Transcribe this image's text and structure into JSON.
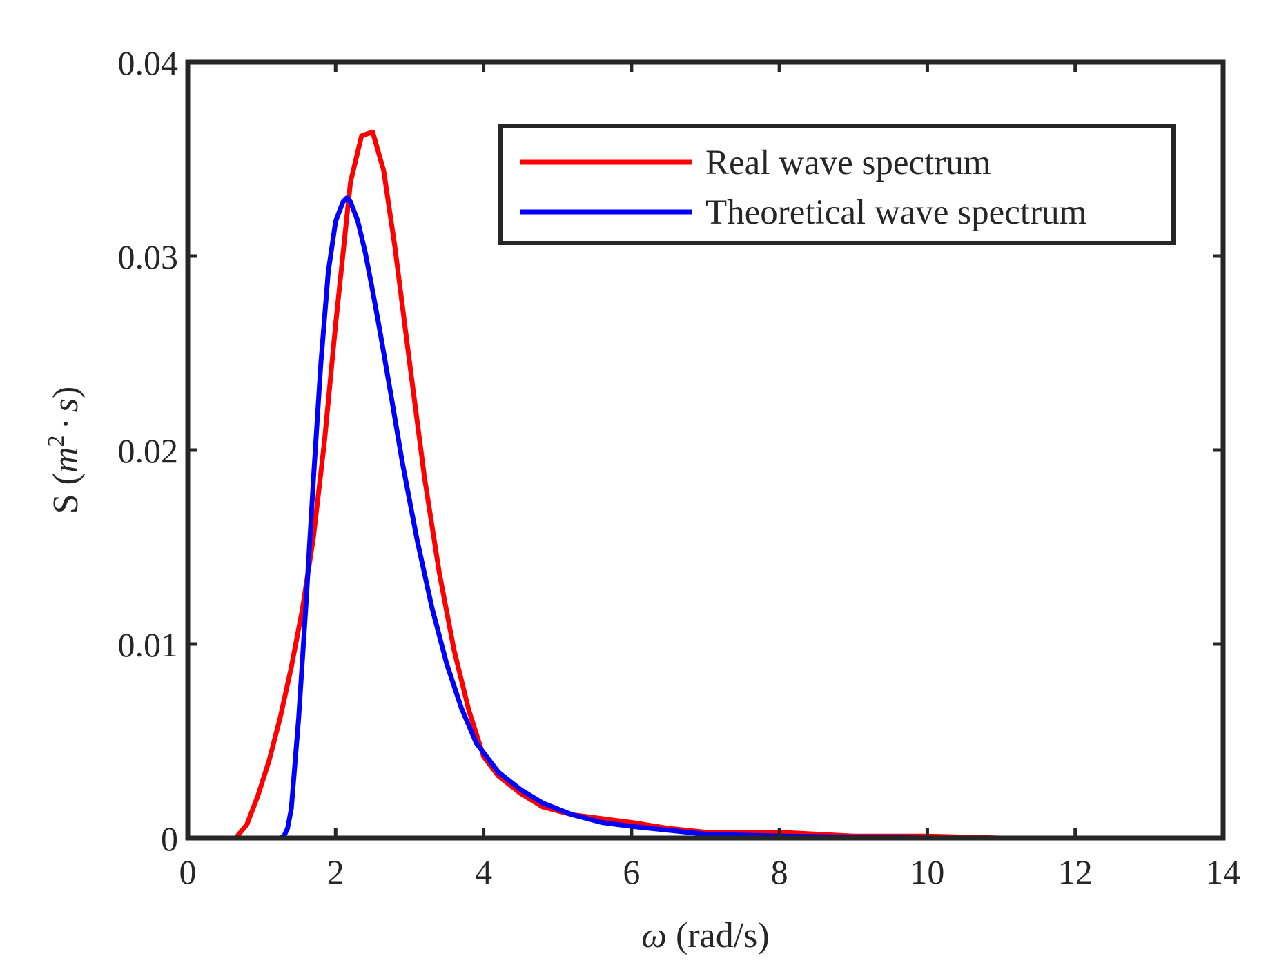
{
  "chart_data": {
    "type": "line",
    "title": "",
    "xlabel": {
      "symbol": "ω",
      "unit": "(rad/s)"
    },
    "ylabel": {
      "prefix": "S",
      "open": "(",
      "m": "m",
      "exp": "2",
      "dot": "·",
      "s": "s",
      "close": ")"
    },
    "xlim": [
      0,
      14
    ],
    "ylim": [
      0,
      0.04
    ],
    "x_ticks": [
      0,
      2,
      4,
      6,
      8,
      10,
      12,
      14
    ],
    "x_tick_labels": [
      "0",
      "2",
      "4",
      "6",
      "8",
      "10",
      "12",
      "14"
    ],
    "y_ticks": [
      0,
      0.01,
      0.02,
      0.03,
      0.04
    ],
    "y_tick_labels": [
      "0",
      "0.01",
      "0.02",
      "0.03",
      "0.04"
    ],
    "grid": false,
    "legend_position": "top-right",
    "series": [
      {
        "name": "Real wave spectrum",
        "color": "#ff0000",
        "x": [
          0.65,
          0.8,
          0.95,
          1.1,
          1.25,
          1.4,
          1.55,
          1.7,
          1.85,
          2.0,
          2.2,
          2.35,
          2.5,
          2.65,
          2.8,
          3.0,
          3.2,
          3.4,
          3.6,
          3.8,
          4.0,
          4.2,
          4.5,
          4.8,
          5.2,
          5.6,
          6.0,
          6.5,
          7.0,
          8.0,
          9.0,
          10.0,
          11.0,
          12.0,
          12.65
        ],
        "y": [
          0.0,
          0.0007,
          0.0022,
          0.004,
          0.0062,
          0.0088,
          0.0118,
          0.0155,
          0.0205,
          0.0265,
          0.0338,
          0.0362,
          0.0364,
          0.0344,
          0.0305,
          0.0245,
          0.0186,
          0.0137,
          0.0097,
          0.0066,
          0.0042,
          0.0032,
          0.0023,
          0.0016,
          0.0012,
          0.001,
          0.0008,
          0.0005,
          0.0003,
          0.0003,
          0.0001,
          0.0001,
          0.0,
          0.0,
          0.0
        ]
      },
      {
        "name": "Theoretical wave spectrum",
        "color": "#0000ff",
        "x": [
          0.65,
          0.8,
          1.0,
          1.15,
          1.25,
          1.3,
          1.35,
          1.4,
          1.5,
          1.6,
          1.7,
          1.8,
          1.9,
          2.0,
          2.1,
          2.15,
          2.2,
          2.3,
          2.4,
          2.5,
          2.6,
          2.75,
          2.9,
          3.1,
          3.3,
          3.5,
          3.7,
          3.9,
          4.2,
          4.5,
          4.8,
          5.2,
          5.6,
          6.0,
          7.0,
          8.0,
          10.0,
          12.65
        ],
        "y": [
          0.0,
          0.0,
          0.0,
          0.0,
          0.0,
          0.0001,
          0.0005,
          0.0015,
          0.0062,
          0.0121,
          0.0185,
          0.0245,
          0.0292,
          0.0318,
          0.0328,
          0.033,
          0.0328,
          0.0318,
          0.0302,
          0.0282,
          0.0261,
          0.0228,
          0.0194,
          0.0154,
          0.0119,
          0.009,
          0.0067,
          0.0049,
          0.0034,
          0.0025,
          0.0018,
          0.0012,
          0.0008,
          0.0006,
          0.0002,
          0.0001,
          0.0,
          0.0
        ]
      }
    ]
  }
}
